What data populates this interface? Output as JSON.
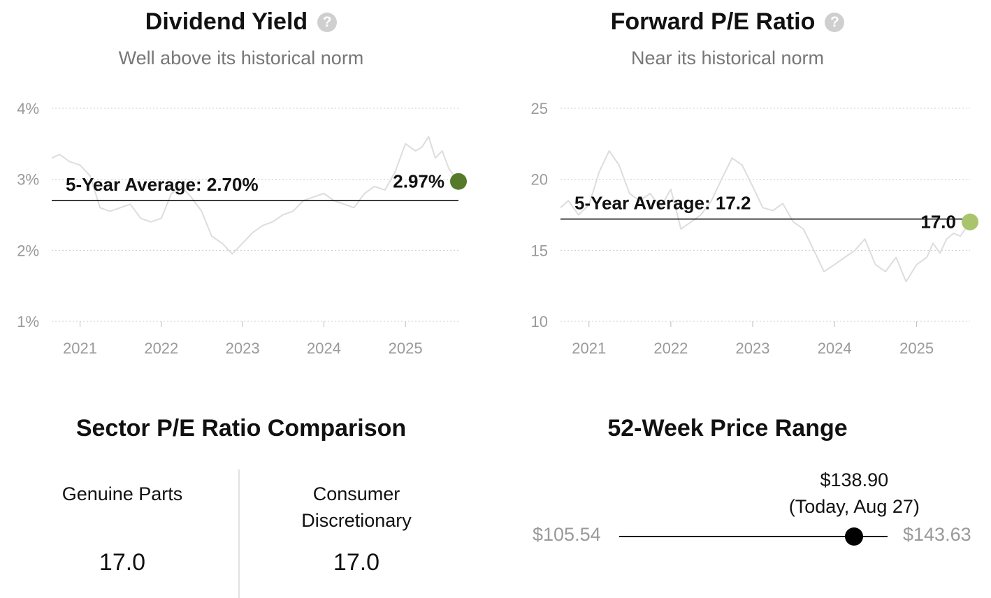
{
  "dividend_panel": {
    "title": "Dividend Yield",
    "subtitle": "Well above its historical norm",
    "help_icon": "question-circle-icon"
  },
  "pe_panel": {
    "title": "Forward P/E Ratio",
    "subtitle": "Near its historical norm",
    "help_icon": "question-circle-icon"
  },
  "sector": {
    "title": "Sector P/E Ratio Comparison",
    "company_name": "Genuine Parts",
    "company_value": "17.0",
    "sector_name": "Consumer Discretionary",
    "sector_value": "17.0"
  },
  "price_range": {
    "title": "52-Week Price Range",
    "low": "$105.54",
    "high": "$143.63",
    "current": "$138.90",
    "current_note": "(Today, Aug 27)",
    "low_value": 105.54,
    "high_value": 143.63,
    "current_value": 138.9
  },
  "chart_data": [
    {
      "type": "line",
      "title": "Dividend Yield",
      "subtitle": "Well above its historical norm",
      "y_unit": "%",
      "ylim": [
        1,
        4
      ],
      "yticks": [
        1,
        2,
        3,
        4
      ],
      "ytick_labels": [
        "1%",
        "2%",
        "3%",
        "4%"
      ],
      "xlim": [
        "2020-08-27",
        "2025-08-27"
      ],
      "xticks": [
        "2021-01-01",
        "2022-01-01",
        "2023-01-01",
        "2024-01-01",
        "2025-01-01"
      ],
      "xtick_labels": [
        "2021",
        "2022",
        "2023",
        "2024",
        "2025"
      ],
      "grid": true,
      "average": {
        "label": "5-Year Average: 2.70%",
        "value": 2.7
      },
      "current": {
        "label": "2.97%",
        "date": "2025-08-27",
        "value": 2.97,
        "color": "#557a2b"
      },
      "line_color": "#dddddd",
      "series": [
        {
          "x": [
            "2020-08-27",
            "2020-10-01",
            "2020-11-15",
            "2021-01-01",
            "2021-02-15",
            "2021-04-01",
            "2021-05-15",
            "2021-07-01",
            "2021-08-15",
            "2021-10-01",
            "2021-11-15",
            "2022-01-01",
            "2022-02-15",
            "2022-04-01",
            "2022-05-15",
            "2022-07-01",
            "2022-08-15",
            "2022-10-01",
            "2022-11-15",
            "2023-01-01",
            "2023-02-15",
            "2023-04-01",
            "2023-05-15",
            "2023-07-01",
            "2023-08-15",
            "2023-10-01",
            "2023-11-15",
            "2024-01-01",
            "2024-02-15",
            "2024-04-01",
            "2024-05-15",
            "2024-07-01",
            "2024-08-15",
            "2024-10-01",
            "2024-11-15",
            "2025-01-01",
            "2025-02-15",
            "2025-03-15",
            "2025-04-15",
            "2025-05-15",
            "2025-06-15",
            "2025-07-15",
            "2025-08-27"
          ],
          "y": [
            3.3,
            3.35,
            3.25,
            3.2,
            3.05,
            2.6,
            2.55,
            2.6,
            2.65,
            2.45,
            2.4,
            2.45,
            2.8,
            2.9,
            2.75,
            2.55,
            2.2,
            2.1,
            1.95,
            2.1,
            2.25,
            2.35,
            2.4,
            2.5,
            2.55,
            2.7,
            2.75,
            2.8,
            2.7,
            2.65,
            2.6,
            2.8,
            2.9,
            2.85,
            3.1,
            3.5,
            3.4,
            3.45,
            3.6,
            3.3,
            3.4,
            3.15,
            2.97
          ]
        }
      ]
    },
    {
      "type": "line",
      "title": "Forward P/E Ratio",
      "subtitle": "Near its historical norm",
      "ylim": [
        10,
        25
      ],
      "yticks": [
        10,
        15,
        20,
        25
      ],
      "ytick_labels": [
        "10",
        "15",
        "20",
        "25"
      ],
      "xlim": [
        "2020-08-27",
        "2025-08-27"
      ],
      "xticks": [
        "2021-01-01",
        "2022-01-01",
        "2023-01-01",
        "2024-01-01",
        "2025-01-01"
      ],
      "xtick_labels": [
        "2021",
        "2022",
        "2023",
        "2024",
        "2025"
      ],
      "grid": true,
      "average": {
        "label": "5-Year Average: 17.2",
        "value": 17.2
      },
      "current": {
        "label": "17.0",
        "date": "2025-08-27",
        "value": 17.0,
        "color": "#a9c46c"
      },
      "line_color": "#dddddd",
      "series": [
        {
          "x": [
            "2020-08-27",
            "2020-10-01",
            "2020-11-15",
            "2021-01-01",
            "2021-02-15",
            "2021-04-01",
            "2021-05-15",
            "2021-07-01",
            "2021-08-15",
            "2021-10-01",
            "2021-11-15",
            "2022-01-01",
            "2022-02-15",
            "2022-04-01",
            "2022-05-15",
            "2022-07-01",
            "2022-08-15",
            "2022-10-01",
            "2022-11-15",
            "2023-01-01",
            "2023-02-15",
            "2023-04-01",
            "2023-05-15",
            "2023-07-01",
            "2023-08-15",
            "2023-10-01",
            "2023-11-15",
            "2024-01-01",
            "2024-02-15",
            "2024-04-01",
            "2024-05-15",
            "2024-07-01",
            "2024-08-15",
            "2024-10-01",
            "2024-11-15",
            "2025-01-01",
            "2025-02-15",
            "2025-03-15",
            "2025-04-15",
            "2025-05-15",
            "2025-06-15",
            "2025-07-15",
            "2025-08-27"
          ],
          "y": [
            18.0,
            18.5,
            17.5,
            18.2,
            20.5,
            22.0,
            21.0,
            19.0,
            18.5,
            19.0,
            18.0,
            19.3,
            16.5,
            17.0,
            17.5,
            18.5,
            20.0,
            21.5,
            21.0,
            19.5,
            18.0,
            17.8,
            18.3,
            17.0,
            16.5,
            15.0,
            13.5,
            14.0,
            14.5,
            15.0,
            15.8,
            14.0,
            13.5,
            14.5,
            12.8,
            14.0,
            14.5,
            15.5,
            14.8,
            15.8,
            16.2,
            16.0,
            17.0
          ]
        }
      ]
    }
  ]
}
